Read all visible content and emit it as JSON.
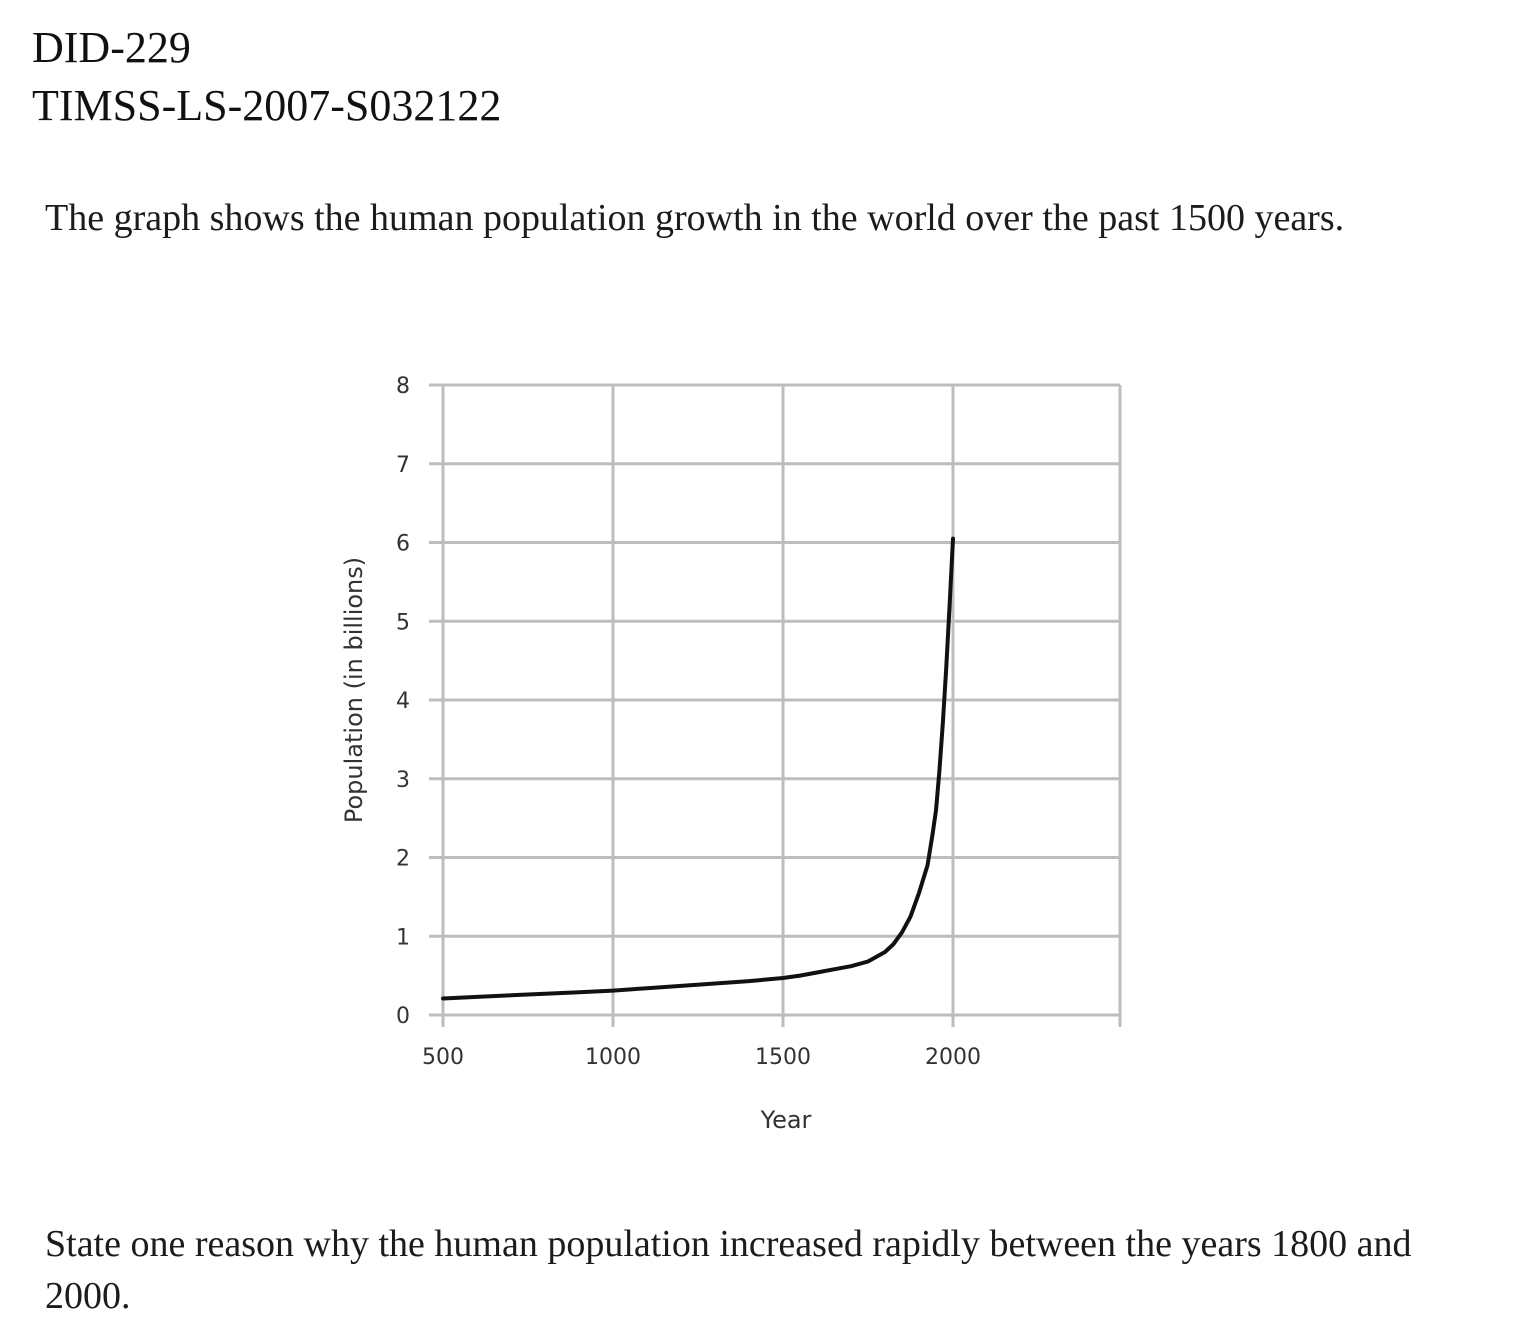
{
  "header": {
    "id_line_1": "DID-229",
    "id_line_2": "TIMSS-LS-2007-S032122"
  },
  "question": {
    "intro": "The graph shows the human population growth in the world over the past 1500 years.",
    "prompt": "State one reason why the human population increased rapidly between the years 1800 and 2000."
  },
  "chart_data": {
    "type": "line",
    "title": "",
    "xlabel": "Year",
    "ylabel": "Population (in billions)",
    "xlim": [
      500,
      2000
    ],
    "ylim": [
      0,
      8
    ],
    "x_ticks": [
      500,
      1000,
      1500,
      2000
    ],
    "y_ticks": [
      0,
      1,
      2,
      3,
      4,
      5,
      6,
      7,
      8
    ],
    "grid": true,
    "line_color": "#111111",
    "grid_color": "#bdbdbd",
    "series": [
      {
        "x": [
          500,
          600,
          700,
          800,
          900,
          1000,
          1100,
          1200,
          1300,
          1400,
          1500,
          1550,
          1600,
          1650,
          1700,
          1750,
          1800,
          1825,
          1850,
          1875,
          1900,
          1925,
          1940,
          1950,
          1960,
          1970,
          1980,
          1990,
          2000
        ],
        "y": [
          0.21,
          0.23,
          0.25,
          0.27,
          0.29,
          0.31,
          0.34,
          0.37,
          0.4,
          0.43,
          0.47,
          0.5,
          0.54,
          0.58,
          0.62,
          0.68,
          0.8,
          0.9,
          1.05,
          1.25,
          1.55,
          1.9,
          2.3,
          2.6,
          3.1,
          3.7,
          4.4,
          5.2,
          6.05
        ]
      }
    ]
  }
}
